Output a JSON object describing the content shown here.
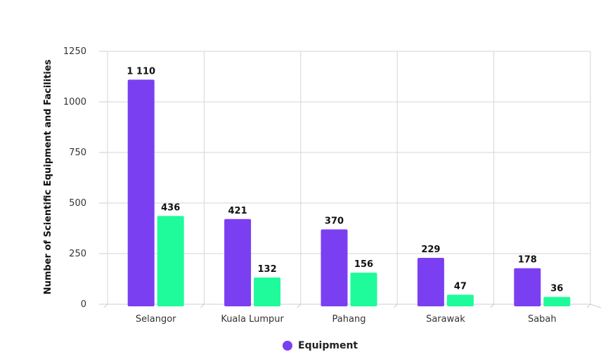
{
  "chart_data": {
    "type": "bar",
    "categories": [
      "Selangor",
      "Kuala Lumpur",
      "Pahang",
      "Sarawak",
      "Sabah"
    ],
    "series": [
      {
        "name": "Equipment",
        "values": [
          1110,
          421,
          370,
          229,
          178
        ],
        "color": "#7b3ff2",
        "labels": [
          "1 110",
          "421",
          "370",
          "229",
          "178"
        ]
      },
      {
        "values": [
          436,
          132,
          156,
          47,
          36
        ],
        "color": "#1ffb9b",
        "labels": [
          "436",
          "132",
          "156",
          "47",
          "36"
        ]
      }
    ],
    "yticks": [
      "0",
      "250",
      "500",
      "750",
      "1000",
      "1250"
    ],
    "ylim": [
      0,
      1250
    ],
    "ylabel": "Number of Scientific Equipment and Facilities",
    "grid": true
  },
  "legend": {
    "label": "Equipment",
    "color": "#7b3ff2"
  }
}
